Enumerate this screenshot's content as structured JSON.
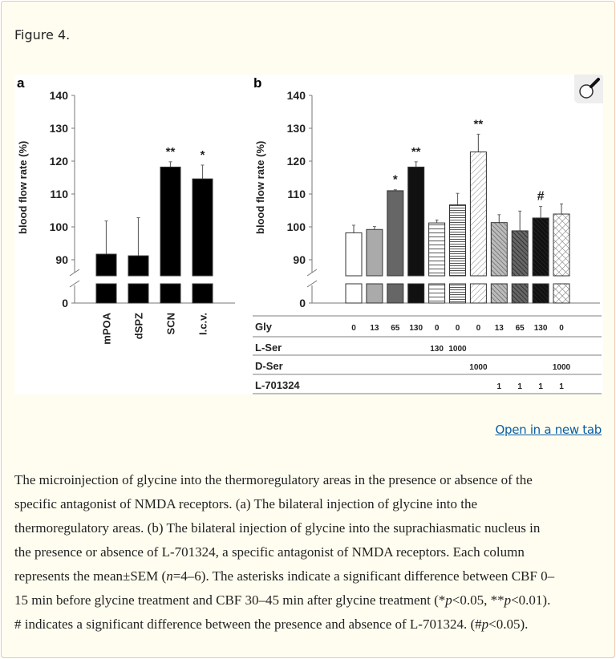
{
  "figure_title": "Figure 4.",
  "open_new_tab": "Open in a new tab",
  "magnifier_icon": "magnifying-glass-icon",
  "chart_data": [
    {
      "panel": "a",
      "type": "bar",
      "ylabel": "blood flow rate (%)",
      "yticks": [
        0,
        90,
        100,
        110,
        120,
        130,
        140
      ],
      "ylim": [
        0,
        140
      ],
      "axis_break": true,
      "categories": [
        "mPOA",
        "dSPZ",
        "SCN",
        "I.c.v."
      ],
      "values": [
        91.7,
        91.2,
        118.2,
        114.6
      ],
      "errors": [
        10.1,
        11.6,
        1.6,
        4.2
      ],
      "annotations": [
        "",
        "",
        "**",
        "*"
      ],
      "color": "#000000"
    },
    {
      "panel": "b",
      "type": "bar",
      "ylabel": "blood flow rate (%)",
      "yticks": [
        0,
        90,
        100,
        110,
        120,
        130,
        140
      ],
      "ylim": [
        0,
        140
      ],
      "axis_break": true,
      "values": [
        98.2,
        99.2,
        111.0,
        118.2,
        101.2,
        106.7,
        122.8,
        101.3,
        98.8,
        102.7,
        103.9
      ],
      "errors": [
        2.3,
        0.9,
        0.3,
        1.6,
        0.9,
        3.5,
        5.4,
        2.4,
        6.0,
        3.5,
        3.1
      ],
      "annotations": [
        "",
        "",
        "*",
        "**",
        "",
        "",
        "**",
        "",
        "",
        "#",
        ""
      ],
      "fills": [
        "white",
        "light-gray",
        "dark-gray",
        "black",
        "horizontal-lines",
        "dense-horizontal-lines",
        "diagonal-light",
        "diagonal-gray",
        "diagonal-dark",
        "diagonal-black",
        "crosshatch"
      ],
      "table": {
        "rows": [
          {
            "label": "Gly",
            "cells": [
              "0",
              "13",
              "65",
              "130",
              "0",
              "0",
              "0",
              "13",
              "65",
              "130",
              "0"
            ]
          },
          {
            "label": "L-Ser",
            "cells": [
              "",
              "",
              "",
              "",
              "130",
              "1000",
              "",
              "",
              "",
              "",
              ""
            ]
          },
          {
            "label": "D-Ser",
            "cells": [
              "",
              "",
              "",
              "",
              "",
              "",
              "1000",
              "",
              "",
              "",
              "1000"
            ]
          },
          {
            "label": "L-701324",
            "cells": [
              "",
              "",
              "",
              "",
              "",
              "",
              "",
              "1",
              "1",
              "1",
              "1"
            ]
          }
        ]
      }
    }
  ],
  "caption_lines": [
    [
      {
        "t": "The microinjection of glycine into the thermoregulatory areas in the presence or absence of the"
      }
    ],
    [
      {
        "t": "specific antagonist of NMDA receptors. (a) The bilateral injection of glycine into the"
      }
    ],
    [
      {
        "t": "thermoregulatory areas. (b) The bilateral injection of glycine into the suprachiasmatic nucleus in"
      }
    ],
    [
      {
        "t": "the presence or absence of L-701324, a specific antagonist of NMDA receptors. Each column"
      }
    ],
    [
      {
        "t": "represents the mean±SEM ("
      },
      {
        "t": "n",
        "i": true
      },
      {
        "t": "=4–6). The asterisks indicate a significant difference between CBF 0–"
      }
    ],
    [
      {
        "t": "15 min before glycine treatment and CBF 30–45 min after glycine treatment (*"
      },
      {
        "t": "p",
        "i": true
      },
      {
        "t": "<0.05, **"
      },
      {
        "t": "p",
        "i": true
      },
      {
        "t": "<0.01)."
      }
    ],
    [
      {
        "t": "# indicates a significant difference between the presence and absence of L-701324. (#"
      },
      {
        "t": "p",
        "i": true
      },
      {
        "t": "<0.05)."
      }
    ]
  ]
}
